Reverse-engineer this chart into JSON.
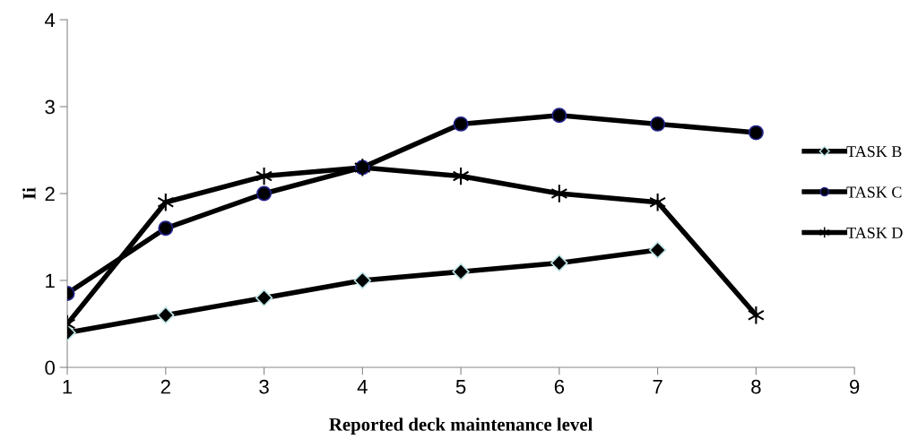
{
  "chart_data": {
    "type": "line",
    "xlabel": "Reported deck maintenance level",
    "ylabel": "Ii",
    "xlim": [
      1,
      9
    ],
    "xticks": [
      1,
      2,
      3,
      4,
      5,
      6,
      7,
      8,
      9
    ],
    "ylim": [
      0,
      4
    ],
    "yticks": [
      0,
      1,
      2,
      3,
      4
    ],
    "grid": false,
    "legend": "right",
    "line_style": "solid",
    "series": [
      {
        "name": "TASK B",
        "color": "#000000",
        "marker": "diamond",
        "x": [
          1,
          2,
          3,
          4,
          5,
          6,
          7
        ],
        "values": [
          0.4,
          0.6,
          0.8,
          1.0,
          1.1,
          1.2,
          1.35
        ]
      },
      {
        "name": "TASK C",
        "color": "#000000",
        "marker": "circle",
        "x": [
          1,
          2,
          3,
          4,
          5,
          6,
          7,
          8
        ],
        "values": [
          0.85,
          1.6,
          2.0,
          2.3,
          2.8,
          2.9,
          2.8,
          2.7
        ]
      },
      {
        "name": "TASK D",
        "color": "#000000",
        "marker": "cross",
        "x": [
          1,
          2,
          3,
          4,
          5,
          6,
          7,
          8
        ],
        "values": [
          0.5,
          1.9,
          2.2,
          2.3,
          2.2,
          2.0,
          1.9,
          0.6
        ]
      }
    ]
  }
}
